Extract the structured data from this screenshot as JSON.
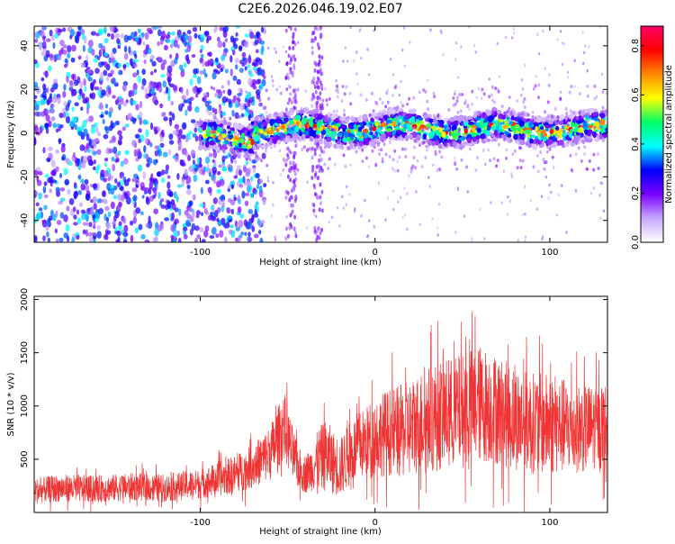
{
  "title": "C2E6.2026.046.19.02.E07",
  "colors": {
    "trace": "#f03434",
    "axis": "#000000",
    "colorbar_stops": [
      "#ffffff",
      "#c8a8ff",
      "#7a00ff",
      "#0000ff",
      "#00ffff",
      "#00ff66",
      "#ffff00",
      "#ff8800",
      "#ff0000",
      "#ff0066"
    ]
  },
  "chart_data": [
    {
      "type": "heatmap",
      "xlabel": "Height of straight line (km)",
      "ylabel": "Frequency (Hz)",
      "xlim": [
        -195,
        133
      ],
      "ylim": [
        -50,
        49
      ],
      "xticks": [
        -100,
        0,
        100
      ],
      "yticks": [
        -40,
        -20,
        0,
        20,
        40
      ],
      "colorbar": {
        "label": "Normalized spectral amplitude",
        "range": [
          0,
          0.88
        ],
        "ticks": [
          "0.0",
          "0.2",
          "0.4",
          "0.6",
          "0.8"
        ]
      },
      "ridge": {
        "x_range": [
          -100,
          133
        ],
        "frequency_hz": 2,
        "peak_amplitude": 0.85
      },
      "noise_region": {
        "x_range": [
          -195,
          -63
        ],
        "typical_amplitude": 0.35
      },
      "vertical_noise_bands_x": [
        -48,
        -33
      ]
    },
    {
      "type": "line",
      "xlabel": "Height of straight line (km)",
      "ylabel": "SNR (10 * v/v)",
      "xlim": [
        -195,
        133
      ],
      "ylim": [
        0,
        2030
      ],
      "xticks": [
        -100,
        0,
        100
      ],
      "yticks": [
        500,
        1000,
        1500,
        2000
      ],
      "series": [
        {
          "x": [
            -195,
            -180,
            -160,
            -140,
            -120,
            -100,
            -90,
            -80,
            -70,
            -60,
            -52,
            -48,
            -44,
            -40,
            -36,
            -32,
            -28,
            -24,
            -20,
            -15,
            -10,
            -5,
            0,
            5,
            10,
            15,
            20,
            25,
            30,
            35,
            40,
            45,
            50,
            55,
            60,
            65,
            70,
            75,
            80,
            85,
            90,
            95,
            100,
            105,
            110,
            115,
            120,
            125,
            133
          ],
          "y": [
            200,
            230,
            220,
            240,
            230,
            270,
            310,
            360,
            430,
            560,
            820,
            600,
            420,
            360,
            420,
            500,
            540,
            470,
            420,
            540,
            620,
            660,
            720,
            740,
            760,
            760,
            790,
            840,
            880,
            900,
            930,
            940,
            960,
            990,
            1020,
            1000,
            960,
            920,
            890,
            860,
            840,
            830,
            830,
            820,
            800,
            790,
            790,
            800,
            820
          ],
          "amplitude": [
            120,
            130,
            130,
            130,
            130,
            140,
            160,
            180,
            200,
            260,
            320,
            260,
            200,
            180,
            220,
            300,
            340,
            300,
            280,
            300,
            320,
            340,
            380,
            400,
            420,
            440,
            460,
            480,
            500,
            520,
            520,
            520,
            540,
            560,
            560,
            540,
            520,
            500,
            500,
            480,
            480,
            480,
            480,
            460,
            440,
            420,
            420,
            400,
            400
          ]
        }
      ]
    }
  ]
}
